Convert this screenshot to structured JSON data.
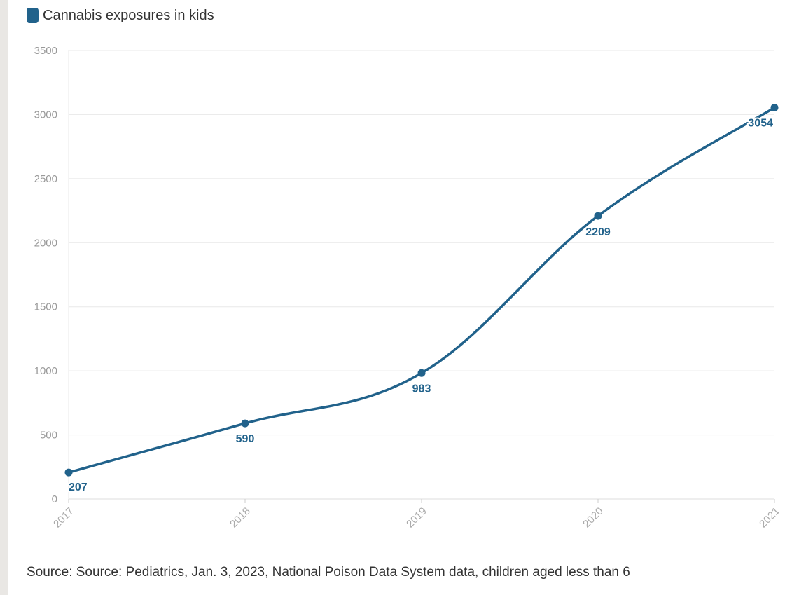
{
  "colors": {
    "series": "#21628b",
    "grid": "#e8e8e8",
    "axis": "#dddddd"
  },
  "legend": {
    "label": "Cannabis exposures in kids"
  },
  "source": "Source: Source: Pediatrics, Jan. 3, 2023, National Poison Data System data, children aged less than 6",
  "chart_data": {
    "type": "line",
    "title": "",
    "xlabel": "",
    "ylabel": "",
    "categories": [
      "2017",
      "2018",
      "2019",
      "2020",
      "2021"
    ],
    "series": [
      {
        "name": "Cannabis exposures in kids",
        "values": [
          207,
          590,
          983,
          2209,
          3054
        ]
      }
    ],
    "y_ticks": [
      "0",
      "500",
      "1000",
      "1500",
      "2000",
      "2500",
      "3000",
      "3500"
    ],
    "ylim": [
      0,
      3500
    ],
    "grid": true,
    "legend_position": "top-left",
    "data_labels": [
      "207",
      "590",
      "983",
      "2209",
      "3054"
    ]
  }
}
